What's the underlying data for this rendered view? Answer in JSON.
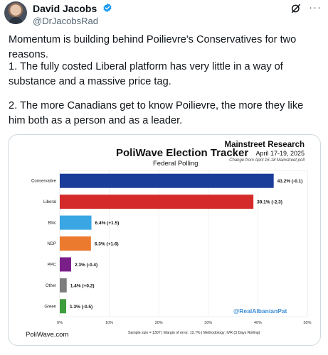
{
  "tweet": {
    "author_name": "David Jacobs",
    "author_handle": "@DrJacobsRad",
    "paragraph_1": "Momentum is building behind Poilievre's Conservatives for two reasons.",
    "paragraph_2": "1. The fully costed Liberal platform has very little in a way of substance and a massive price tag.",
    "paragraph_3": "2. The more Canadians get to know Poilievre, the more they like him both as a person and as a leader.",
    "more_label": "···",
    "icons": {
      "verified": "verified-badge-icon",
      "grok": "grok-icon",
      "more": "more-options-icon"
    },
    "accent_color": "#1d9bf0"
  },
  "image": {
    "source_title": "Mainstreet Research",
    "dates": "April 17-19, 2025",
    "change_note": "Change from April 16-18 Mainstreet poll",
    "title": "PoliWave Election Tracker",
    "subtitle": "Federal Polling",
    "watermark": "@RealAlbanianPat",
    "footer_left": "PoliWave.com",
    "footer_mid": "Sample size = 1307   |   Margin of error: ±2.7%   |   Methodology: IVR (3 Days Rolling)"
  },
  "chart_data": {
    "type": "bar",
    "orientation": "horizontal",
    "categories": [
      "Conservative",
      "Liberal",
      "Bloc",
      "NDP",
      "PPC",
      "Other",
      "Green"
    ],
    "values": [
      43.2,
      39.1,
      6.4,
      6.3,
      2.3,
      1.4,
      1.3
    ],
    "changes": [
      "-0.1",
      "-2.3",
      "+1.5",
      "+1.6",
      "-0.4",
      "+0.2",
      "-0.5"
    ],
    "data_labels": [
      "43.2% (-0.1)",
      "39.1% (-2.3)",
      "6.4% (+1.5)",
      "6.3% (+1.6)",
      "2.3% (-0.4)",
      "1.4% (+0.2)",
      "1.3% (-0.5)"
    ],
    "colors": [
      "#1b3d9a",
      "#d42a2a",
      "#3aa7e4",
      "#ec7a2e",
      "#7a1f8a",
      "#7d7d7d",
      "#3e9e3e"
    ],
    "x_ticks": [
      "0%",
      "10%",
      "20%",
      "30%",
      "40%",
      "50%"
    ],
    "xlim": [
      0,
      50
    ],
    "grid": true,
    "legend": "none"
  }
}
